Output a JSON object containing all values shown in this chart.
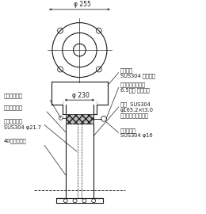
{
  "bg_color": "#ffffff",
  "line_color": "#1a1a1a",
  "labels": {
    "phi255": "φ 255",
    "phi230": "φ 230",
    "cap_line1": "キャップ",
    "cap_line2": "SUS304 バフ研磨",
    "chain_line1": "ステンレスクサリ",
    "chain_line2": "6.5ミリ 電解研磨",
    "gasket": "ゴムパッキン",
    "reflector": "白反射テープ",
    "guide_line1": "ガイドパイプ",
    "guide_line2": "SUS304 φ21.7",
    "lock": "40ミリ南京錢",
    "pillar_line1": "支柱  SUS304",
    "pillar_line2": "φ165.2×t3.0",
    "pillar_line3": "ヘアーライン仕上げ",
    "bolt_line1": "カギボルト",
    "bolt_line2": "SUS304 φ16"
  }
}
